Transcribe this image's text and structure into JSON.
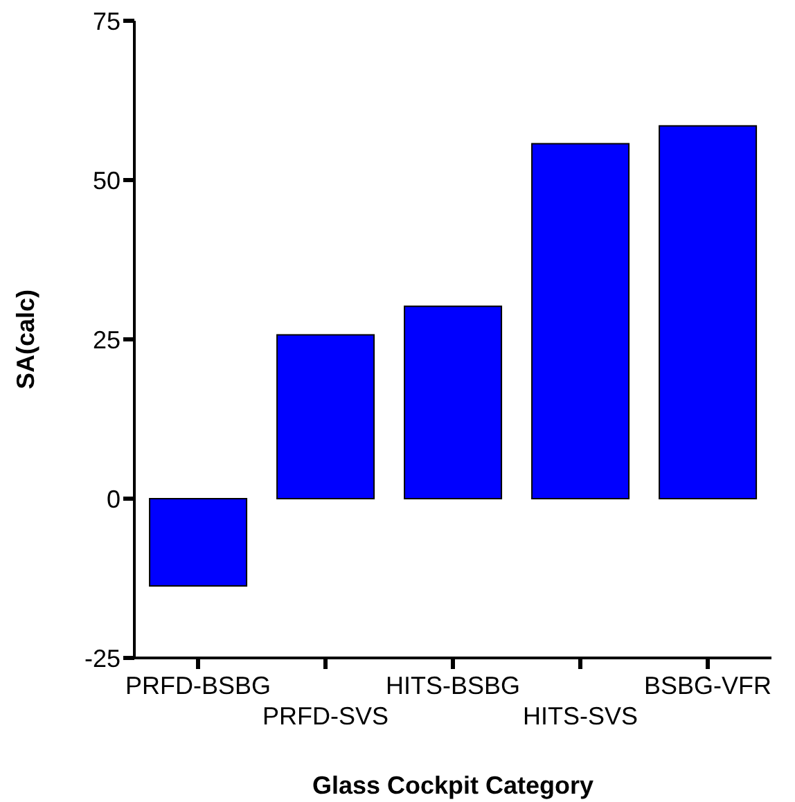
{
  "chart_data": {
    "type": "bar",
    "xlabel": "Glass Cockpit Category",
    "ylabel": "SA(calc)",
    "categories": [
      "PRFD-BSBG",
      "PRFD-SVS",
      "HITS-BSBG",
      "HITS-SVS",
      "BSBG-VFR"
    ],
    "values": [
      -13.7,
      25.7,
      30.2,
      55.7,
      58.5
    ],
    "color": "#0000ff",
    "ylim": [
      -25,
      75
    ],
    "yticks": [
      -25,
      0,
      25,
      50,
      75
    ],
    "grid": false
  }
}
